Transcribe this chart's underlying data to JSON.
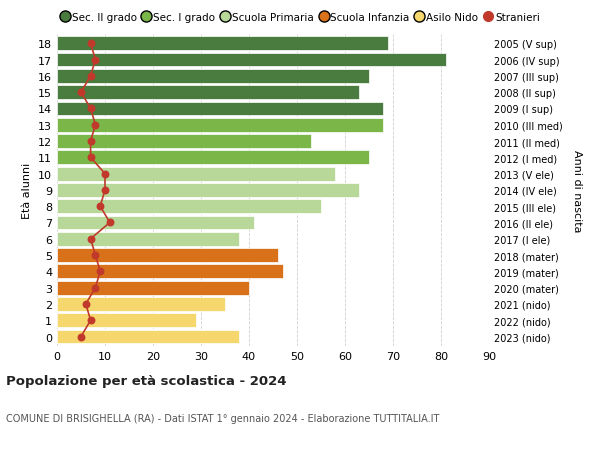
{
  "ages": [
    18,
    17,
    16,
    15,
    14,
    13,
    12,
    11,
    10,
    9,
    8,
    7,
    6,
    5,
    4,
    3,
    2,
    1,
    0
  ],
  "right_labels": [
    "2005 (V sup)",
    "2006 (IV sup)",
    "2007 (III sup)",
    "2008 (II sup)",
    "2009 (I sup)",
    "2010 (III med)",
    "2011 (II med)",
    "2012 (I med)",
    "2013 (V ele)",
    "2014 (IV ele)",
    "2015 (III ele)",
    "2016 (II ele)",
    "2017 (I ele)",
    "2018 (mater)",
    "2019 (mater)",
    "2020 (mater)",
    "2021 (nido)",
    "2022 (nido)",
    "2023 (nido)"
  ],
  "bar_values": [
    69,
    81,
    65,
    63,
    68,
    68,
    53,
    65,
    58,
    63,
    55,
    41,
    38,
    46,
    47,
    40,
    35,
    29,
    38
  ],
  "bar_colors": [
    "#4a7c3f",
    "#4a7c3f",
    "#4a7c3f",
    "#4a7c3f",
    "#4a7c3f",
    "#7ab648",
    "#7ab648",
    "#7ab648",
    "#b8d89a",
    "#b8d89a",
    "#b8d89a",
    "#b8d89a",
    "#b8d89a",
    "#d9711a",
    "#d9711a",
    "#d9711a",
    "#f5d76e",
    "#f5d76e",
    "#f5d76e"
  ],
  "stranieri_values": [
    7,
    8,
    7,
    5,
    7,
    8,
    7,
    7,
    10,
    10,
    9,
    11,
    7,
    8,
    9,
    8,
    6,
    7,
    5
  ],
  "stranieri_color": "#c0392b",
  "legend_items": [
    {
      "label": "Sec. II grado",
      "color": "#4a7c3f"
    },
    {
      "label": "Sec. I grado",
      "color": "#7ab648"
    },
    {
      "label": "Scuola Primaria",
      "color": "#b8d89a"
    },
    {
      "label": "Scuola Infanzia",
      "color": "#d9711a"
    },
    {
      "label": "Asilo Nido",
      "color": "#f5d76e"
    },
    {
      "label": "Stranieri",
      "color": "#c0392b"
    }
  ],
  "ylabel_left": "Età alunni",
  "ylabel_right": "Anni di nascita",
  "title": "Popolazione per età scolastica - 2024",
  "subtitle": "COMUNE DI BRISIGHELLA (RA) - Dati ISTAT 1° gennaio 2024 - Elaborazione TUTTITALIA.IT",
  "xlim": [
    0,
    90
  ],
  "xticks": [
    0,
    10,
    20,
    30,
    40,
    50,
    60,
    70,
    80,
    90
  ],
  "background_color": "#ffffff",
  "grid_color": "#d0d0d0"
}
